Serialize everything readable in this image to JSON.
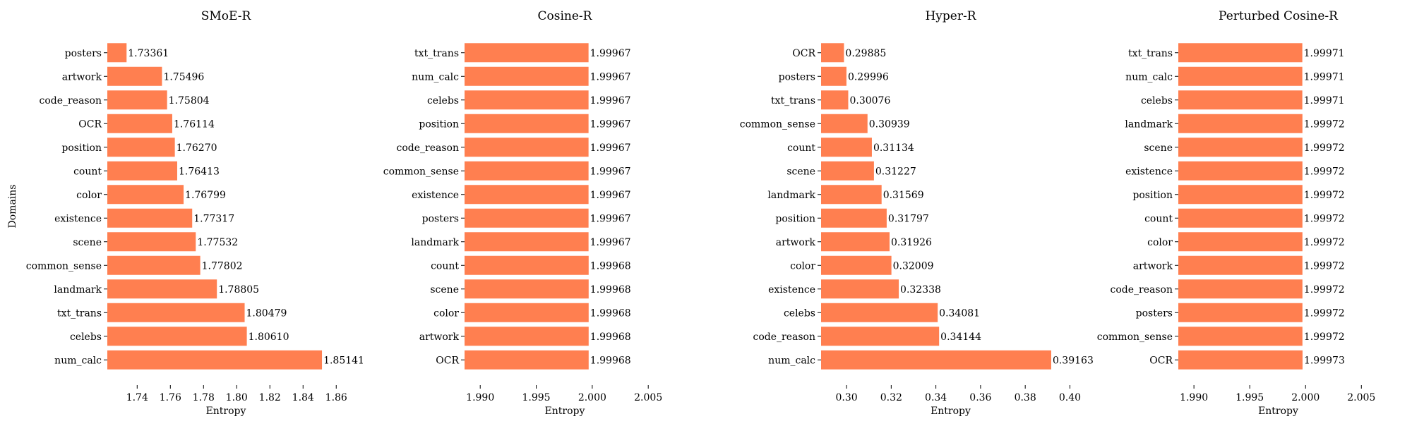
{
  "bar_color": "#ff7f50",
  "chart_data": [
    {
      "type": "bar",
      "orientation": "horizontal",
      "title": "SMoE-R",
      "xlabel": "Entropy",
      "ylabel": "Domains",
      "xlim": [
        1.722,
        1.865
      ],
      "xticks": [
        1.74,
        1.76,
        1.78,
        1.8,
        1.82,
        1.84,
        1.86
      ],
      "xtick_labels": [
        "1.74",
        "1.76",
        "1.78",
        "1.80",
        "1.82",
        "1.84",
        "1.86"
      ],
      "categories": [
        "posters",
        "artwork",
        "code_reason",
        "OCR",
        "position",
        "count",
        "color",
        "existence",
        "scene",
        "common_sense",
        "landmark",
        "txt_trans",
        "celebs",
        "num_calc"
      ],
      "values": [
        1.73361,
        1.75496,
        1.75804,
        1.76114,
        1.7627,
        1.76413,
        1.76799,
        1.77317,
        1.77532,
        1.77802,
        1.78805,
        1.80479,
        1.8061,
        1.85141
      ],
      "value_labels": [
        "1.73361",
        "1.75496",
        "1.75804",
        "1.76114",
        "1.76270",
        "1.76413",
        "1.76799",
        "1.77317",
        "1.77532",
        "1.77802",
        "1.78805",
        "1.80479",
        "1.80610",
        "1.85141"
      ]
    },
    {
      "type": "bar",
      "orientation": "horizontal",
      "title": "Cosine-R",
      "xlabel": "Entropy",
      "ylabel": "",
      "xlim": [
        1.9886,
        2.0065
      ],
      "xticks": [
        1.99,
        1.995,
        2.0,
        2.005
      ],
      "xtick_labels": [
        "1.990",
        "1.995",
        "2.000",
        "2.005"
      ],
      "categories": [
        "txt_trans",
        "num_calc",
        "celebs",
        "position",
        "code_reason",
        "common_sense",
        "existence",
        "posters",
        "landmark",
        "count",
        "scene",
        "color",
        "artwork",
        "OCR"
      ],
      "values": [
        1.99967,
        1.99967,
        1.99967,
        1.99967,
        1.99967,
        1.99967,
        1.99967,
        1.99967,
        1.99967,
        1.99968,
        1.99968,
        1.99968,
        1.99968,
        1.99968
      ],
      "value_labels": [
        "1.99967",
        "1.99967",
        "1.99967",
        "1.99967",
        "1.99967",
        "1.99967",
        "1.99967",
        "1.99967",
        "1.99967",
        "1.99968",
        "1.99968",
        "1.99968",
        "1.99968",
        "1.99968"
      ]
    },
    {
      "type": "bar",
      "orientation": "horizontal",
      "title": "Hyper-R",
      "xlabel": "Entropy",
      "ylabel": "",
      "xlim": [
        0.2886,
        0.4046
      ],
      "xticks": [
        0.3,
        0.32,
        0.34,
        0.36,
        0.38,
        0.4
      ],
      "xtick_labels": [
        "0.30",
        "0.32",
        "0.34",
        "0.36",
        "0.38",
        "0.40"
      ],
      "categories": [
        "OCR",
        "posters",
        "txt_trans",
        "common_sense",
        "count",
        "scene",
        "landmark",
        "position",
        "artwork",
        "color",
        "existence",
        "celebs",
        "code_reason",
        "num_calc"
      ],
      "values": [
        0.29885,
        0.29996,
        0.30076,
        0.30939,
        0.31134,
        0.31227,
        0.31569,
        0.31797,
        0.31926,
        0.32009,
        0.32338,
        0.34081,
        0.34144,
        0.39163
      ],
      "value_labels": [
        "0.29885",
        "0.29996",
        "0.30076",
        "0.30939",
        "0.31134",
        "0.31227",
        "0.31569",
        "0.31797",
        "0.31926",
        "0.32009",
        "0.32338",
        "0.34081",
        "0.34144",
        "0.39163"
      ]
    },
    {
      "type": "bar",
      "orientation": "horizontal",
      "title": "Perturbed Cosine-R",
      "xlabel": "Entropy",
      "ylabel": "",
      "xlim": [
        1.9886,
        2.0065
      ],
      "xticks": [
        1.99,
        1.995,
        2.0,
        2.005
      ],
      "xtick_labels": [
        "1.990",
        "1.995",
        "2.000",
        "2.005"
      ],
      "categories": [
        "txt_trans",
        "num_calc",
        "celebs",
        "landmark",
        "scene",
        "existence",
        "position",
        "count",
        "color",
        "artwork",
        "code_reason",
        "posters",
        "common_sense",
        "OCR"
      ],
      "values": [
        1.99971,
        1.99971,
        1.99971,
        1.99972,
        1.99972,
        1.99972,
        1.99972,
        1.99972,
        1.99972,
        1.99972,
        1.99972,
        1.99972,
        1.99972,
        1.99973
      ],
      "value_labels": [
        "1.99971",
        "1.99971",
        "1.99971",
        "1.99972",
        "1.99972",
        "1.99972",
        "1.99972",
        "1.99972",
        "1.99972",
        "1.99972",
        "1.99972",
        "1.99972",
        "1.99972",
        "1.99973"
      ]
    }
  ]
}
